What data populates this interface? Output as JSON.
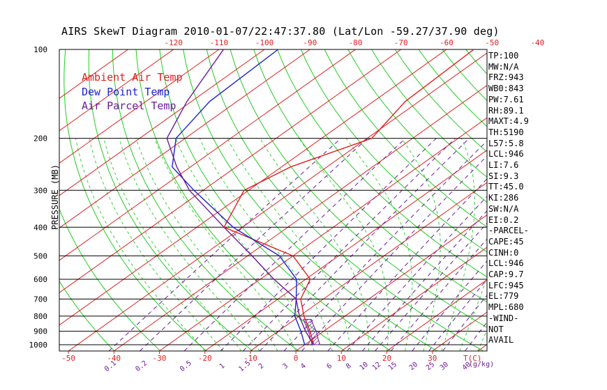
{
  "title": "AIRS SkewT Diagram 2010-01-07/22:47:37.80 (Lat/Lon -59.27/37.90 deg)",
  "y_axis_label": "PRESSURE (MB)",
  "legend": [
    {
      "label": "Ambient Air Temp",
      "color": "#e02020"
    },
    {
      "label": "Dew Point Temp",
      "color": "#2020d0"
    },
    {
      "label": "Air Parcel Temp",
      "color": "#6a1a9a"
    }
  ],
  "stats": [
    "TP:100",
    "MW:N/A",
    "FRZ:943",
    "WB0:843",
    "PW:7.61",
    "RH:89.1",
    "MAXT:4.9",
    "TH:5190",
    "L57:5.8",
    "LCL:946",
    "LI:7.6",
    "SI:9.3",
    "TT:45.0",
    "KI:286",
    "SW:N/A",
    "EI:0.2",
    "-PARCEL-",
    "CAPE:45",
    "CINH:0",
    "LCL:946",
    "CAP:9.7",
    "LFC:945",
    "EL:779",
    "MPL:680",
    "-WIND-",
    "NOT",
    "AVAIL"
  ],
  "chart_data": {
    "type": "line",
    "title": "AIRS SkewT Diagram 2010-01-07/22:47:37.80 (Lat/Lon -59.27/37.90 deg)",
    "ylabel": "PRESSURE (MB)",
    "pressure_ticks": [
      "100",
      "200",
      "300",
      "400",
      "500",
      "600",
      "700",
      "800",
      "900",
      "1000"
    ],
    "bottom_temp_ticks": [
      "-50",
      "-40",
      "-30",
      "-20",
      "-10",
      "0",
      "10",
      "20",
      "30"
    ],
    "bottom_temp_unit": "T(C)",
    "top_temp_ticks": [
      "-120",
      "-110",
      "-100",
      "-90",
      "-80",
      "-70",
      "-60",
      "-50",
      "-40"
    ],
    "mixing_ratio_labels": [
      "0.1",
      "0.2",
      "0.5",
      "1",
      "1.5",
      "2",
      "3",
      "4",
      "6",
      "8",
      "10",
      "12",
      "15",
      "20",
      "25",
      "30",
      "40"
    ],
    "mixing_ratio_unit": "(g/kg)",
    "series": [
      {
        "name": "Ambient Air Temp",
        "color": "#e02020",
        "points": [
          [
            100,
            -54
          ],
          [
            150,
            -53
          ],
          [
            200,
            -49
          ],
          [
            250,
            -58
          ],
          [
            300,
            -61
          ],
          [
            400,
            -54
          ],
          [
            500,
            -30
          ],
          [
            600,
            -19
          ],
          [
            700,
            -15
          ],
          [
            800,
            -9
          ],
          [
            900,
            -3
          ],
          [
            1000,
            2
          ]
        ]
      },
      {
        "name": "Dew Point Temp",
        "color": "#2020d0",
        "points": [
          [
            100,
            -97
          ],
          [
            150,
            -96
          ],
          [
            200,
            -92
          ],
          [
            250,
            -84
          ],
          [
            300,
            -72
          ],
          [
            400,
            -52
          ],
          [
            500,
            -33
          ],
          [
            600,
            -22
          ],
          [
            700,
            -16
          ],
          [
            800,
            -11
          ],
          [
            900,
            -5
          ],
          [
            1000,
            0
          ]
        ]
      },
      {
        "name": "Air Parcel Temp",
        "color": "#6a1a9a",
        "points": [
          [
            100,
            -109
          ],
          [
            150,
            -101
          ],
          [
            200,
            -94
          ],
          [
            250,
            -83
          ],
          [
            300,
            -73
          ],
          [
            400,
            -54
          ],
          [
            500,
            -39
          ],
          [
            600,
            -27
          ],
          [
            700,
            -16
          ],
          [
            800,
            -10
          ],
          [
            900,
            -4
          ],
          [
            1000,
            2
          ]
        ]
      }
    ]
  }
}
